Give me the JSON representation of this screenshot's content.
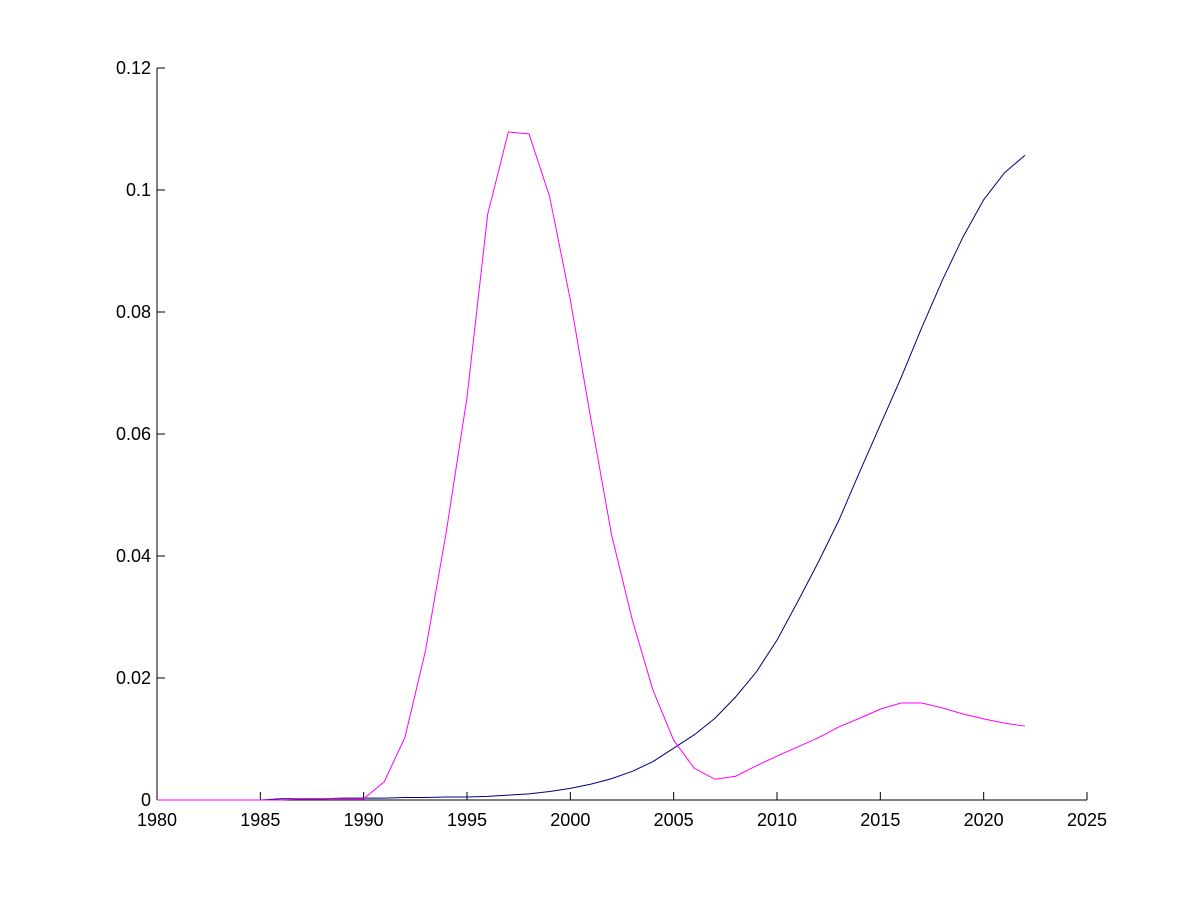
{
  "chart_data": {
    "type": "line",
    "x": [
      1980,
      1981,
      1982,
      1983,
      1984,
      1985,
      1986,
      1987,
      1988,
      1989,
      1990,
      1991,
      1992,
      1993,
      1994,
      1995,
      1996,
      1997,
      1998,
      1999,
      2000,
      2001,
      2002,
      2003,
      2004,
      2005,
      2006,
      2007,
      2008,
      2009,
      2010,
      2011,
      2012,
      2013,
      2014,
      2015,
      2016,
      2017,
      2018,
      2019,
      2020,
      2021,
      2022
    ],
    "series": [
      {
        "color": "#000080",
        "values": [
          0,
          0,
          0,
          0,
          0,
          0,
          0.0002,
          0.0002,
          0.0002,
          0.0003,
          0.0003,
          0.0003,
          0.0004,
          0.0004,
          0.0005,
          0.0005,
          0.0006,
          0.0008,
          0.001,
          0.0014,
          0.0019,
          0.0026,
          0.0035,
          0.0047,
          0.0063,
          0.0085,
          0.0107,
          0.0134,
          0.0169,
          0.021,
          0.0262,
          0.0325,
          0.039,
          0.0459,
          0.0538,
          0.0615,
          0.0692,
          0.0774,
          0.0852,
          0.0923,
          0.0984,
          0.1028,
          0.1057
        ]
      },
      {
        "color": "#ff00ff",
        "values": [
          0,
          0,
          0,
          0,
          0,
          0,
          0,
          0.0002,
          0.0002,
          0.0002,
          0.0002,
          0.003,
          0.0103,
          0.0246,
          0.044,
          0.066,
          0.096,
          0.1095,
          0.1092,
          0.0989,
          0.082,
          0.0623,
          0.0434,
          0.0295,
          0.018,
          0.0098,
          0.0052,
          0.0034,
          0.0039,
          0.0056,
          0.0072,
          0.0087,
          0.0102,
          0.012,
          0.0134,
          0.0149,
          0.0159,
          0.0159,
          0.0151,
          0.0141,
          0.0133,
          0.0126,
          0.0121
        ]
      }
    ],
    "xlim": [
      1980,
      2025
    ],
    "xticks": [
      1980,
      1985,
      1990,
      1995,
      2000,
      2005,
      2010,
      2015,
      2020,
      2025
    ],
    "ylim": [
      0,
      0.12
    ],
    "yticks": [
      0,
      0.02,
      0.04,
      0.06,
      0.08,
      0.1,
      0.12
    ]
  }
}
